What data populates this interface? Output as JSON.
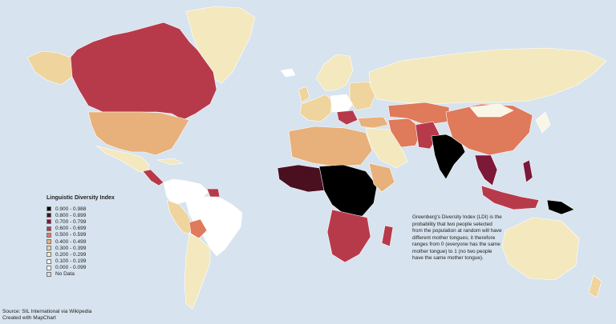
{
  "map": {
    "legend": {
      "title": "Linguistic Diversity Index",
      "items": [
        {
          "label": "0.900 - 0.988",
          "color": "#000000"
        },
        {
          "label": "0.800 - 0.899",
          "color": "#4a1020"
        },
        {
          "label": "0.700 - 0.799",
          "color": "#7c1838"
        },
        {
          "label": "0.600 - 0.699",
          "color": "#b73a4b"
        },
        {
          "label": "0.500 - 0.599",
          "color": "#df7a5a"
        },
        {
          "label": "0.400 - 0.499",
          "color": "#e8b07a"
        },
        {
          "label": "0.300 - 0.399",
          "color": "#efd49d"
        },
        {
          "label": "0.200 - 0.299",
          "color": "#f4e8bf"
        },
        {
          "label": "0.100 - 0.199",
          "color": "#faf6e6"
        },
        {
          "label": "0.000 - 0.099",
          "color": "#ffffff"
        },
        {
          "label": "No Data",
          "color": "#dcdcdc"
        }
      ]
    },
    "note": "Greenberg's Diversity Index (LDI) is the probability that two people selected from the population at random will have different mother tongues; it therefore ranges from 0 (everyone has the same mother tongue) to 1 (no two people have the same mother tongue).",
    "source_lines": [
      "Source: SIL International via Wikipedia",
      "Created with MapChart"
    ],
    "colors": {
      "ocean": "#d7e3ee",
      "border": "#ffffff"
    }
  }
}
